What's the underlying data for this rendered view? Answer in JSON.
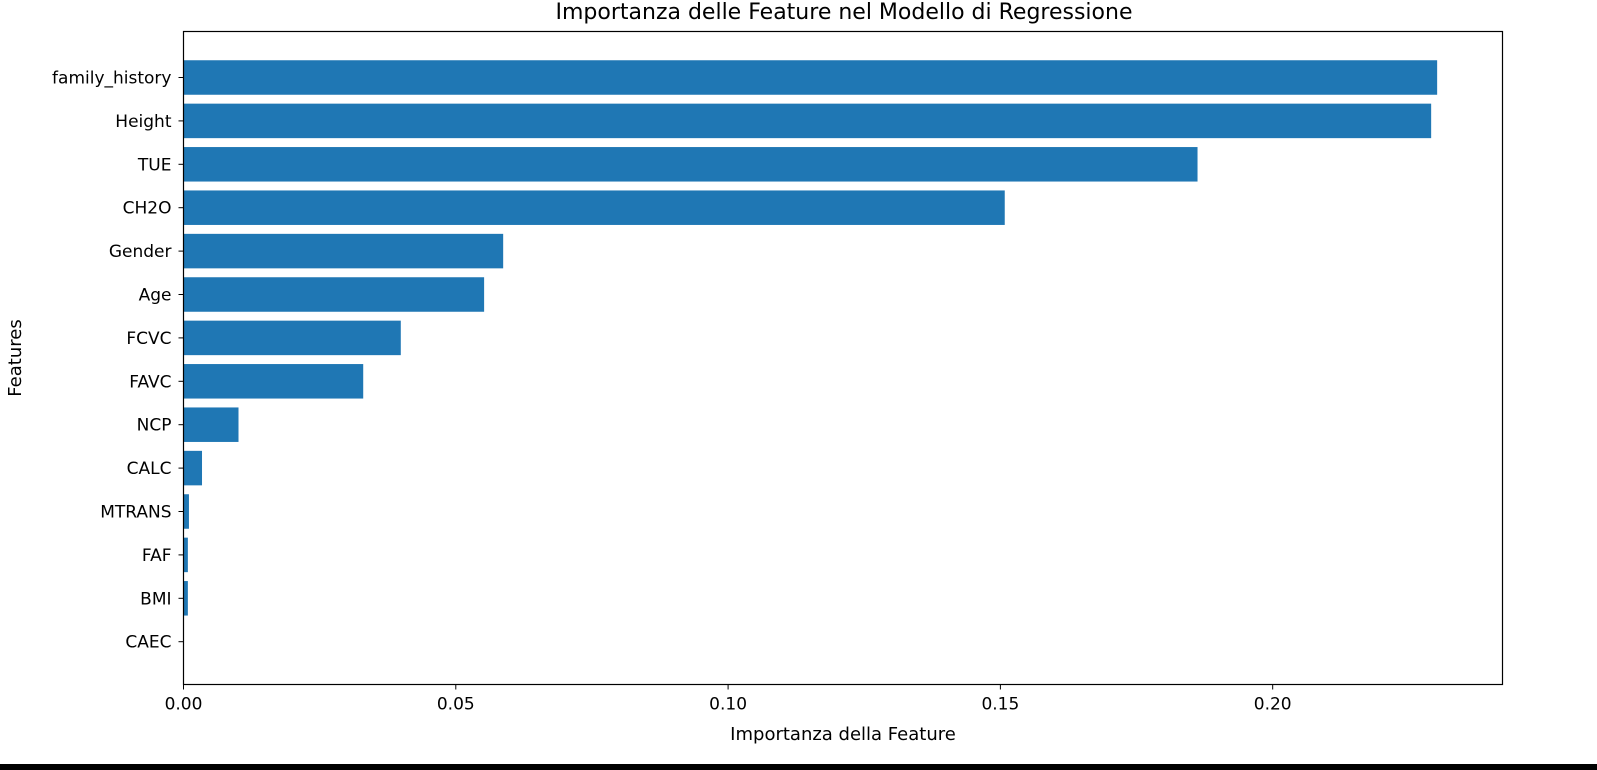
{
  "chart_data": {
    "type": "bar",
    "orientation": "horizontal",
    "title": "Importanza delle Feature nel Modello di Regressione",
    "xlabel": "Importanza della Feature",
    "ylabel": "Features",
    "categories": [
      "family_history",
      "Height",
      "TUE",
      "CH2O",
      "Gender",
      "Age",
      "FCVC",
      "FAVC",
      "NCP",
      "CALC",
      "MTRANS",
      "FAF",
      "BMI",
      "CAEC"
    ],
    "values": [
      0.2302,
      0.2291,
      0.1862,
      0.1508,
      0.0587,
      0.0552,
      0.0399,
      0.033,
      0.0101,
      0.0034,
      0.001,
      0.0008,
      0.0008,
      0.0
    ],
    "xlim": [
      0,
      0.2422
    ],
    "xticks": [
      0.0,
      0.05,
      0.1,
      0.15,
      0.2
    ],
    "xtick_labels": [
      "0.00",
      "0.05",
      "0.10",
      "0.15",
      "0.20"
    ],
    "bar_color": "#1f77b4",
    "grid": false,
    "legend": "none"
  }
}
